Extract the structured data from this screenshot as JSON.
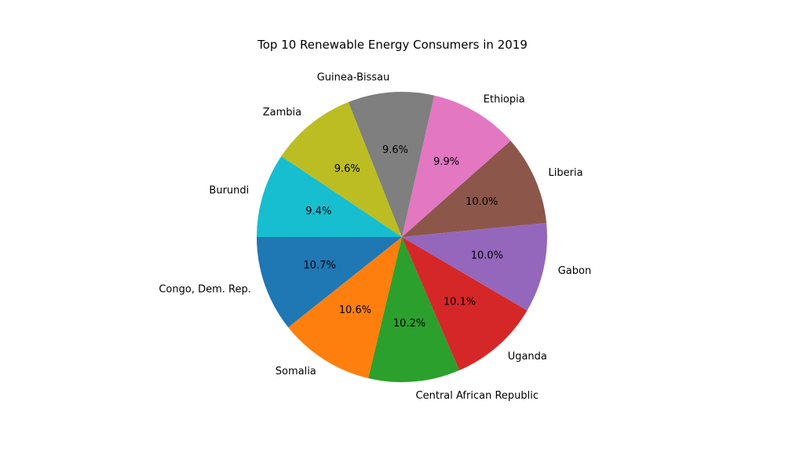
{
  "chart_data": {
    "type": "pie",
    "title": "Top 10 Renewable Energy Consumers in 2019",
    "categories": [
      "Congo, Dem. Rep.",
      "Somalia",
      "Central African Republic",
      "Uganda",
      "Gabon",
      "Liberia",
      "Ethiopia",
      "Guinea-Bissau",
      "Zambia",
      "Burundi"
    ],
    "values": [
      10.7,
      10.6,
      10.2,
      10.1,
      10.0,
      10.0,
      9.9,
      9.6,
      9.6,
      9.4
    ],
    "value_labels": [
      "10.7%",
      "10.6%",
      "10.2%",
      "10.1%",
      "10.0%",
      "10.0%",
      "9.9%",
      "9.6%",
      "9.6%",
      "9.4%"
    ],
    "colors": [
      "#1f77b4",
      "#ff7f0e",
      "#2ca02c",
      "#d62728",
      "#9467bd",
      "#8c564b",
      "#e377c2",
      "#7f7f7f",
      "#bcbd22",
      "#17becf"
    ],
    "start_angle_deg": 180,
    "direction": "counterclockwise"
  }
}
